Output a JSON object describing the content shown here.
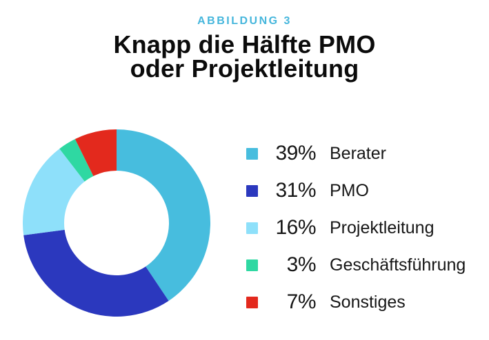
{
  "figure_label": "ABBILDUNG 3",
  "figure_label_color": "#45b6dc",
  "title": "Knapp die Hälfte PMO\noder Projektleitung",
  "chart_data": {
    "type": "pie",
    "subtype": "donut",
    "title": "Knapp die Hälfte PMO oder Projektleitung",
    "figure_number": "ABBILDUNG 3",
    "legend_position": "right",
    "start_angle_deg": 0,
    "direction": "clockwise",
    "items": [
      {
        "pct": "39%",
        "value": 39,
        "label": "Berater",
        "color": "#47bdde"
      },
      {
        "pct": "31%",
        "value": 31,
        "label": "PMO",
        "color": "#2b38be"
      },
      {
        "pct": "16%",
        "value": 16,
        "label": "Projektleitung",
        "color": "#8ee0fa"
      },
      {
        "pct": "3%",
        "value": 3,
        "label": "Geschäftsführung",
        "color": "#2fd8a2"
      },
      {
        "pct": "7%",
        "value": 7,
        "label": "Sonstiges",
        "color": "#e3291d"
      }
    ]
  }
}
